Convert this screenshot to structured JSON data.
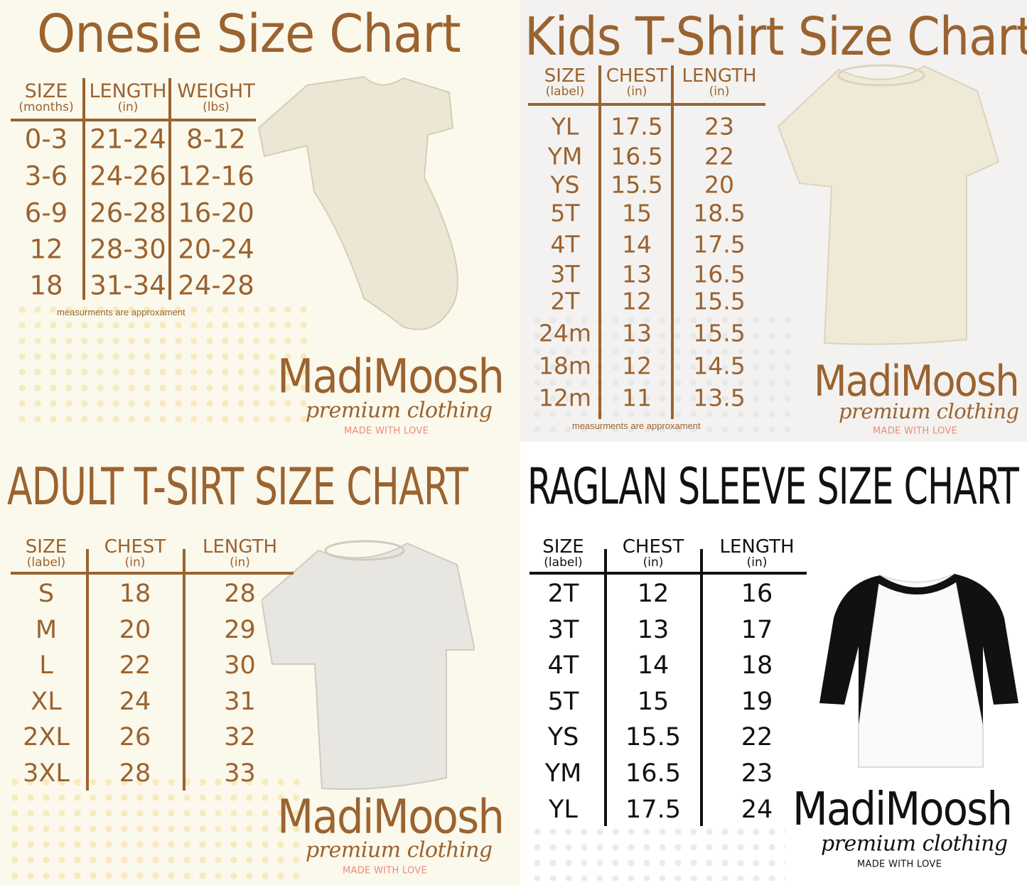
{
  "colors": {
    "brown": "#9a6330",
    "pink": "#f08a7a",
    "black": "#111111",
    "cream": "#fbf8ec",
    "grey_bg": "#f3f2f0",
    "white": "#ffffff"
  },
  "brand": {
    "name": "MadiMoosh",
    "tagline": "premium clothing",
    "slogan": "MADE WITH LOVE"
  },
  "panels": [
    {
      "id": "onesie",
      "title": "Onesie Size Chart",
      "headers": [
        {
          "label": "SIZE",
          "unit": "(months)"
        },
        {
          "label": "LENGTH",
          "unit": "(in)"
        },
        {
          "label": "WEIGHT",
          "unit": "(lbs)"
        }
      ],
      "rows": [
        [
          "0-3",
          "21-24",
          "8-12"
        ],
        [
          "3-6",
          "24-26",
          "12-16"
        ],
        [
          "6-9",
          "26-28",
          "16-20"
        ],
        [
          "12",
          "28-30",
          "20-24"
        ],
        [
          "18",
          "31-34",
          "24-28"
        ]
      ],
      "note": "measurments are approxament",
      "garment": "onesie-image"
    },
    {
      "id": "kids",
      "title": "Kids T-Shirt Size Chart",
      "headers": [
        {
          "label": "SIZE",
          "unit": "(label)"
        },
        {
          "label": "CHEST",
          "unit": "(in)"
        },
        {
          "label": "LENGTH",
          "unit": "(in)"
        }
      ],
      "rows": [
        [
          "YL",
          "17.5",
          "23"
        ],
        [
          "YM",
          "16.5",
          "22"
        ],
        [
          "YS",
          "15.5",
          "20"
        ],
        [
          "5T",
          "15",
          "18.5"
        ],
        [
          "4T",
          "14",
          "17.5"
        ],
        [
          "3T",
          "13",
          "16.5"
        ],
        [
          "2T",
          "12",
          "15.5"
        ],
        [
          "24m",
          "13",
          "15.5"
        ],
        [
          "18m",
          "12",
          "14.5"
        ],
        [
          "12m",
          "11",
          "13.5"
        ]
      ],
      "note": "measurments are approxament",
      "garment": "kids-tshirt-image"
    },
    {
      "id": "adult",
      "title": "ADULT T-SIRT SIZE CHART",
      "headers": [
        {
          "label": "SIZE",
          "unit": "(label)"
        },
        {
          "label": "CHEST",
          "unit": "(in)"
        },
        {
          "label": "LENGTH",
          "unit": "(in)"
        }
      ],
      "rows": [
        [
          "S",
          "18",
          "28"
        ],
        [
          "M",
          "20",
          "29"
        ],
        [
          "L",
          "22",
          "30"
        ],
        [
          "XL",
          "24",
          "31"
        ],
        [
          "2XL",
          "26",
          "32"
        ],
        [
          "3XL",
          "28",
          "33"
        ]
      ],
      "garment": "adult-tshirt-image"
    },
    {
      "id": "raglan",
      "title": "RAGLAN SLEEVE SIZE CHART",
      "headers": [
        {
          "label": "SIZE",
          "unit": "(label)"
        },
        {
          "label": "CHEST",
          "unit": "(in)"
        },
        {
          "label": "LENGTH",
          "unit": "(in)"
        }
      ],
      "rows": [
        [
          "2T",
          "12",
          "16"
        ],
        [
          "3T",
          "13",
          "17"
        ],
        [
          "4T",
          "14",
          "18"
        ],
        [
          "5T",
          "15",
          "19"
        ],
        [
          "YS",
          "15.5",
          "22"
        ],
        [
          "YM",
          "16.5",
          "23"
        ],
        [
          "YL",
          "17.5",
          "24"
        ]
      ],
      "garment": "raglan-shirt-image"
    }
  ]
}
